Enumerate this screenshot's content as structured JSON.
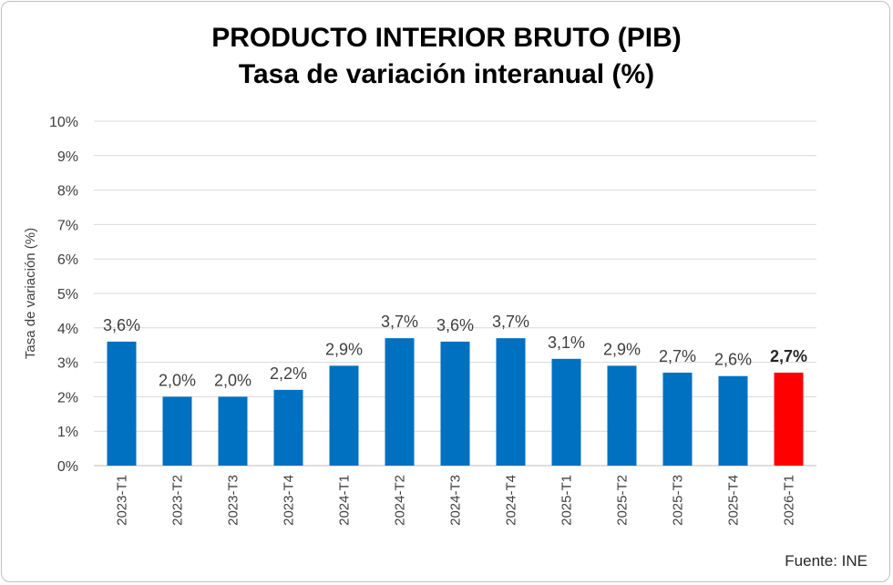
{
  "chart_data": {
    "type": "bar",
    "title": "PRODUCTO INTERIOR BRUTO (PIB)",
    "subtitle": "Tasa de variación interanual (%)",
    "ylabel": "Tasa de variación (%)",
    "xlabel": "",
    "ylim": [
      0,
      10
    ],
    "yticks": [
      "0%",
      "1%",
      "2%",
      "3%",
      "4%",
      "5%",
      "6%",
      "7%",
      "8%",
      "9%",
      "10%"
    ],
    "grid": true,
    "categories": [
      "2023-T1",
      "2023-T2",
      "2023-T3",
      "2023-T4",
      "2024-T1",
      "2024-T2",
      "2024-T3",
      "2024-T4",
      "2025-T1",
      "2025-T2",
      "2025-T3",
      "2025-T4",
      "2026-T1"
    ],
    "values": [
      3.6,
      2.0,
      2.0,
      2.2,
      2.9,
      3.7,
      3.6,
      3.7,
      3.1,
      2.9,
      2.7,
      2.6,
      2.7
    ],
    "labels": [
      "3,6%",
      "2,0%",
      "2,0%",
      "2,2%",
      "2,9%",
      "3,7%",
      "3,6%",
      "3,7%",
      "3,1%",
      "2,9%",
      "2,7%",
      "2,6%",
      "2,7%"
    ],
    "highlight_index": 12,
    "colors": {
      "bar": "#0070C0",
      "highlight": "#FF0000",
      "grid": "#d9d9d9"
    }
  },
  "source": "Fuente: INE"
}
